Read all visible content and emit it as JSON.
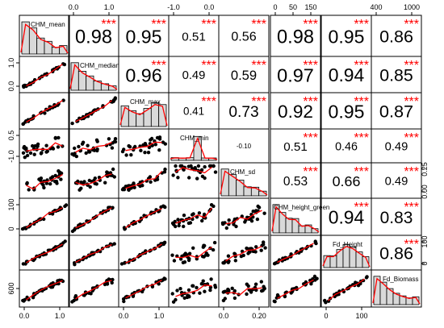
{
  "chart_data": {
    "type": "scatter-matrix",
    "title": "",
    "variables": [
      "CHM_mean",
      "CHM_median",
      "CHM_max",
      "CHM_min",
      "CHM_sd",
      "CHM_height_green",
      "Fd_Height",
      "Fd_Biomass"
    ],
    "upper_correlations": [
      {
        "row": 0,
        "col": 1,
        "r": "0.98",
        "stars": "***"
      },
      {
        "row": 0,
        "col": 2,
        "r": "0.95",
        "stars": "***"
      },
      {
        "row": 0,
        "col": 3,
        "r": "0.51",
        "stars": "***"
      },
      {
        "row": 0,
        "col": 4,
        "r": "0.56",
        "stars": "***"
      },
      {
        "row": 0,
        "col": 5,
        "r": "0.98",
        "stars": "***"
      },
      {
        "row": 0,
        "col": 6,
        "r": "0.95",
        "stars": "***"
      },
      {
        "row": 0,
        "col": 7,
        "r": "0.86",
        "stars": "***"
      },
      {
        "row": 1,
        "col": 2,
        "r": "0.96",
        "stars": "***"
      },
      {
        "row": 1,
        "col": 3,
        "r": "0.49",
        "stars": "***"
      },
      {
        "row": 1,
        "col": 4,
        "r": "0.59",
        "stars": "***"
      },
      {
        "row": 1,
        "col": 5,
        "r": "0.97",
        "stars": "***"
      },
      {
        "row": 1,
        "col": 6,
        "r": "0.94",
        "stars": "***"
      },
      {
        "row": 1,
        "col": 7,
        "r": "0.85",
        "stars": "***"
      },
      {
        "row": 2,
        "col": 3,
        "r": "0.41",
        "stars": "***"
      },
      {
        "row": 2,
        "col": 4,
        "r": "0.73",
        "stars": "***"
      },
      {
        "row": 2,
        "col": 5,
        "r": "0.92",
        "stars": "***"
      },
      {
        "row": 2,
        "col": 6,
        "r": "0.95",
        "stars": "***"
      },
      {
        "row": 2,
        "col": 7,
        "r": "0.87",
        "stars": "***"
      },
      {
        "row": 3,
        "col": 4,
        "r": "-0.10",
        "stars": ""
      },
      {
        "row": 3,
        "col": 5,
        "r": "0.51",
        "stars": "***"
      },
      {
        "row": 3,
        "col": 6,
        "r": "0.46",
        "stars": "***"
      },
      {
        "row": 3,
        "col": 7,
        "r": "0.49",
        "stars": "***"
      },
      {
        "row": 4,
        "col": 5,
        "r": "0.53",
        "stars": "***"
      },
      {
        "row": 4,
        "col": 6,
        "r": "0.66",
        "stars": "***"
      },
      {
        "row": 4,
        "col": 7,
        "r": "0.49",
        "stars": "***"
      },
      {
        "row": 5,
        "col": 6,
        "r": "0.94",
        "stars": "***"
      },
      {
        "row": 5,
        "col": 7,
        "r": "0.83",
        "stars": "***"
      },
      {
        "row": 6,
        "col": 7,
        "r": "0.86",
        "stars": "***"
      }
    ],
    "axis_ticks": {
      "top": [
        {
          "col": 1,
          "labels": [
            "0.0",
            "1.0"
          ]
        },
        {
          "col": 3,
          "labels": [
            "-1.0",
            "0.0"
          ]
        },
        {
          "col": 5,
          "labels": [
            "0",
            "50",
            "150"
          ]
        },
        {
          "col": 7,
          "labels": [
            "400",
            "1000"
          ]
        }
      ],
      "bottom": [
        {
          "col": 0,
          "labels": [
            "0.0",
            "1.0"
          ]
        },
        {
          "col": 2,
          "labels": [
            "0.0",
            "1.0"
          ]
        },
        {
          "col": 4,
          "labels": [
            "0.0",
            "0.20"
          ]
        },
        {
          "col": 6,
          "labels": [
            "0",
            "100"
          ]
        }
      ],
      "left": [
        {
          "row": 1,
          "labels": [
            "0.0",
            "1.0"
          ]
        },
        {
          "row": 3,
          "labels": [
            "-1.0",
            "0.5"
          ]
        },
        {
          "row": 5,
          "labels": [
            "0",
            "100"
          ]
        },
        {
          "row": 7,
          "labels": [
            "600"
          ]
        }
      ],
      "right": [
        {
          "row": 4,
          "labels": [
            "0.00",
            "0.25"
          ]
        },
        {
          "row": 6,
          "labels": [
            "0",
            "100"
          ]
        }
      ]
    },
    "diagonal": "histogram with density curve",
    "lower": "scatter with smoothed fit line",
    "colors": {
      "points": "#000000",
      "fit_line": "#ff0000",
      "stars": "#ff0000",
      "histogram_fill": "#d9d9d9",
      "frame": "#000000"
    }
  }
}
